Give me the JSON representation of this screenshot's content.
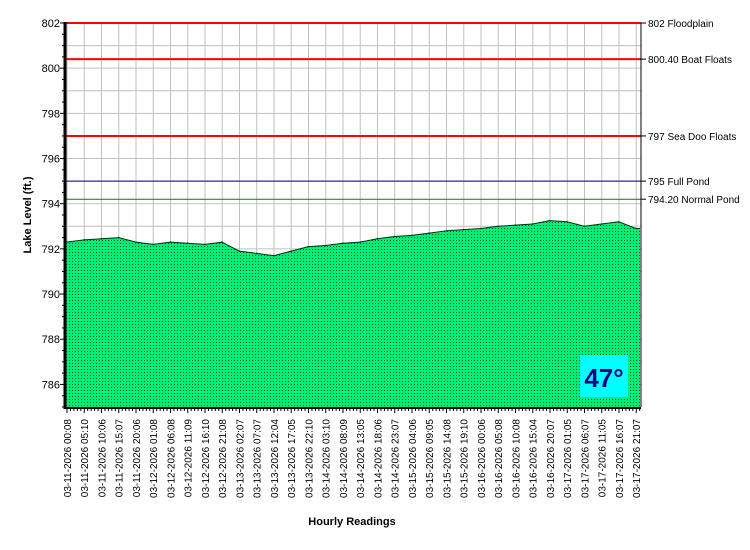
{
  "chart_data": {
    "type": "area",
    "title": "",
    "xlabel": "Hourly Readings",
    "ylabel": "Lake Level (ft.)",
    "ylim": [
      785,
      802
    ],
    "yticks": [
      786,
      788,
      790,
      792,
      794,
      796,
      798,
      800,
      802
    ],
    "grid": true,
    "categories": [
      "03-11-2026 00:08",
      "03-11-2026 05:10",
      "03-11-2026 10:06",
      "03-11-2026 15:07",
      "03-11-2026 20:06",
      "03-12-2026 01:08",
      "03-12-2026 06:08",
      "03-12-2026 11:09",
      "03-12-2026 16:10",
      "03-12-2026 21:08",
      "03-13-2026 02:07",
      "03-13-2026 07:07",
      "03-13-2026 12:04",
      "03-13-2026 17:05",
      "03-13-2026 22:10",
      "03-14-2026 03:10",
      "03-14-2026 08:09",
      "03-14-2026 13:05",
      "03-14-2026 18:06",
      "03-14-2026 23:07",
      "03-15-2026 04:06",
      "03-15-2026 09:05",
      "03-15-2026 14:08",
      "03-15-2026 19:10",
      "03-16-2026 00:06",
      "03-16-2026 05:08",
      "03-16-2026 10:08",
      "03-16-2026 15:04",
      "03-16-2026 20:07",
      "03-17-2026 01:05",
      "03-17-2026 06:07",
      "03-17-2026 11:05",
      "03-17-2026 16:07",
      "03-17-2026 21:07"
    ],
    "series": [
      {
        "name": "Lake Level",
        "color": "#00e676",
        "values": [
          792.3,
          792.4,
          792.45,
          792.5,
          792.3,
          792.2,
          792.3,
          792.25,
          792.2,
          792.3,
          791.9,
          791.8,
          791.7,
          791.9,
          792.1,
          792.15,
          792.25,
          792.3,
          792.45,
          792.55,
          792.6,
          792.7,
          792.8,
          792.85,
          792.9,
          793.0,
          793.05,
          793.1,
          793.25,
          793.2,
          793.0,
          793.1,
          793.2,
          792.9
        ]
      }
    ],
    "reference_lines": [
      {
        "value": 802,
        "label": "802 Floodplain",
        "color": "#ff0000"
      },
      {
        "value": 800.4,
        "label": "800.40 Boat Floats",
        "color": "#ff0000"
      },
      {
        "value": 797,
        "label": "797 Sea Doo Floats",
        "color": "#ff0000"
      },
      {
        "value": 795,
        "label": "795 Full Pond",
        "color": "#000080"
      },
      {
        "value": 794.2,
        "label": "794.20 Normal Pond",
        "color": "#008000"
      }
    ],
    "annotation": {
      "text": "47°",
      "bg": "#00ffff",
      "color": "#000080"
    }
  }
}
